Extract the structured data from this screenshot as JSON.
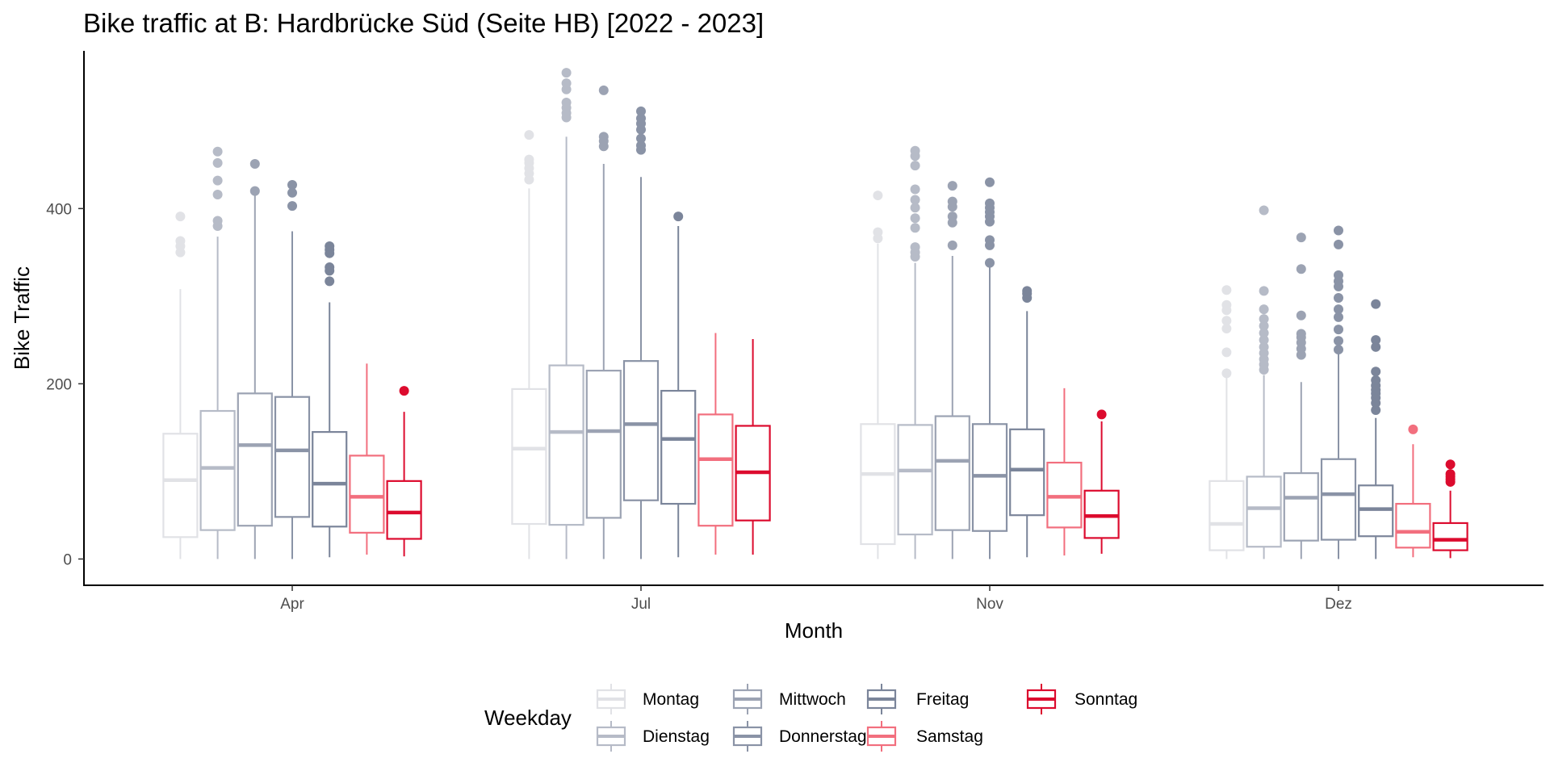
{
  "chart_data": {
    "type": "boxplot",
    "title": "Bike traffic at B: Hardbrücke Süd (Seite HB)  [2022 - 2023]",
    "xlabel": "Month",
    "ylabel": "Bike Traffic",
    "categories": [
      "Apr",
      "Jul",
      "Nov",
      "Dez"
    ],
    "ylim": [
      -30,
      580
    ],
    "y_ticks": [
      0,
      200,
      400
    ],
    "grid": false,
    "legend": {
      "title": "Weekday",
      "position": "bottom",
      "entries": [
        "Montag",
        "Dienstag",
        "Mittwoch",
        "Donnerstag",
        "Freitag",
        "Samstag",
        "Sonntag"
      ]
    },
    "series": [
      {
        "name": "Montag",
        "color": "#e1e2e6",
        "boxes": [
          {
            "q1": 25,
            "median": 90,
            "q3": 143,
            "whisker_low": 0,
            "whisker_high": 308,
            "outliers": [
              350,
              357,
              363,
              391
            ]
          },
          {
            "q1": 40,
            "median": 126,
            "q3": 194,
            "whisker_low": 0,
            "whisker_high": 423,
            "outliers": [
              433,
              440,
              446,
              452,
              456,
              484
            ]
          },
          {
            "q1": 17,
            "median": 97,
            "q3": 154,
            "whisker_low": 0,
            "whisker_high": 360,
            "outliers": [
              366,
              373,
              415
            ]
          },
          {
            "q1": 10,
            "median": 40,
            "q3": 89,
            "whisker_low": 0,
            "whisker_high": 210,
            "outliers": [
              212,
              236,
              263,
              272,
              284,
              290,
              307
            ]
          }
        ]
      },
      {
        "name": "Dienstag",
        "color": "#b6bbc7",
        "boxes": [
          {
            "q1": 33,
            "median": 104,
            "q3": 169,
            "whisker_low": 0,
            "whisker_high": 368,
            "outliers": [
              380,
              386,
              416,
              432,
              452,
              465
            ]
          },
          {
            "q1": 39,
            "median": 145,
            "q3": 221,
            "whisker_low": 0,
            "whisker_high": 482,
            "outliers": [
              504,
              509,
              515,
              521,
              536,
              543,
              555
            ]
          },
          {
            "q1": 28,
            "median": 101,
            "q3": 153,
            "whisker_low": 0,
            "whisker_high": 338,
            "outliers": [
              345,
              350,
              356,
              378,
              389,
              401,
              410,
              422,
              449,
              460,
              466
            ]
          },
          {
            "q1": 14,
            "median": 58,
            "q3": 94,
            "whisker_low": 0,
            "whisker_high": 210,
            "outliers": [
              216,
              222,
              228,
              235,
              242,
              250,
              258,
              266,
              274,
              285,
              306,
              398
            ]
          }
        ]
      },
      {
        "name": "Mittwoch",
        "color": "#9ca3b3",
        "boxes": [
          {
            "q1": 38,
            "median": 130,
            "q3": 189,
            "whisker_low": 0,
            "whisker_high": 418,
            "outliers": [
              420,
              451
            ]
          },
          {
            "q1": 47,
            "median": 146,
            "q3": 215,
            "whisker_low": 0,
            "whisker_high": 451,
            "outliers": [
              471,
              477,
              482,
              535
            ]
          },
          {
            "q1": 33,
            "median": 112,
            "q3": 163,
            "whisker_low": 0,
            "whisker_high": 346,
            "outliers": [
              358,
              384,
              391,
              402,
              408,
              426
            ]
          },
          {
            "q1": 21,
            "median": 70,
            "q3": 98,
            "whisker_low": 0,
            "whisker_high": 202,
            "outliers": [
              233,
              240,
              247,
              253,
              257,
              278,
              331,
              367
            ]
          }
        ]
      },
      {
        "name": "Donnerstag",
        "color": "#8a93a6",
        "boxes": [
          {
            "q1": 48,
            "median": 124,
            "q3": 185,
            "whisker_low": 0,
            "whisker_high": 374,
            "outliers": [
              403,
              418,
              427
            ]
          },
          {
            "q1": 67,
            "median": 154,
            "q3": 226,
            "whisker_low": 0,
            "whisker_high": 436,
            "outliers": [
              467,
              472,
              480,
              490,
              497,
              503,
              511
            ]
          },
          {
            "q1": 32,
            "median": 95,
            "q3": 154,
            "whisker_low": 0,
            "whisker_high": 335,
            "outliers": [
              338,
              358,
              364,
              385,
              391,
              396,
              401,
              406,
              430
            ]
          },
          {
            "q1": 22,
            "median": 74,
            "q3": 114,
            "whisker_low": 0,
            "whisker_high": 234,
            "outliers": [
              239,
              249,
              262,
              276,
              285,
              298,
              311,
              317,
              324,
              359,
              375
            ]
          }
        ]
      },
      {
        "name": "Freitag",
        "color": "#7b859a",
        "boxes": [
          {
            "q1": 37,
            "median": 86,
            "q3": 145,
            "whisker_low": 2,
            "whisker_high": 293,
            "outliers": [
              317,
              329,
              333,
              349,
              353,
              357
            ]
          },
          {
            "q1": 63,
            "median": 137,
            "q3": 192,
            "whisker_low": 2,
            "whisker_high": 380,
            "outliers": [
              391
            ]
          },
          {
            "q1": 50,
            "median": 102,
            "q3": 148,
            "whisker_low": 2,
            "whisker_high": 283,
            "outliers": [
              298,
              303,
              306
            ]
          },
          {
            "q1": 26,
            "median": 57,
            "q3": 84,
            "whisker_low": 0,
            "whisker_high": 161,
            "outliers": [
              170,
              178,
              184,
              189,
              193,
              198,
              204,
              214,
              242,
              250,
              291
            ]
          }
        ]
      },
      {
        "name": "Samstag",
        "color": "#f26f7e",
        "boxes": [
          {
            "q1": 30,
            "median": 71,
            "q3": 118,
            "whisker_low": 5,
            "whisker_high": 223,
            "outliers": []
          },
          {
            "q1": 38,
            "median": 114,
            "q3": 165,
            "whisker_low": 5,
            "whisker_high": 258,
            "outliers": []
          },
          {
            "q1": 36,
            "median": 71,
            "q3": 110,
            "whisker_low": 4,
            "whisker_high": 195,
            "outliers": []
          },
          {
            "q1": 13,
            "median": 31,
            "q3": 63,
            "whisker_low": 2,
            "whisker_high": 131,
            "outliers": [
              148
            ]
          }
        ]
      },
      {
        "name": "Sonntag",
        "color": "#dc0b2e",
        "boxes": [
          {
            "q1": 23,
            "median": 53,
            "q3": 89,
            "whisker_low": 3,
            "whisker_high": 168,
            "outliers": [
              192
            ]
          },
          {
            "q1": 44,
            "median": 99,
            "q3": 152,
            "whisker_low": 5,
            "whisker_high": 251,
            "outliers": []
          },
          {
            "q1": 24,
            "median": 49,
            "q3": 78,
            "whisker_low": 6,
            "whisker_high": 157,
            "outliers": [
              165
            ]
          },
          {
            "q1": 10,
            "median": 22,
            "q3": 41,
            "whisker_low": 1,
            "whisker_high": 78,
            "outliers": [
              88,
              91,
              94,
              97,
              108
            ]
          }
        ]
      }
    ]
  }
}
